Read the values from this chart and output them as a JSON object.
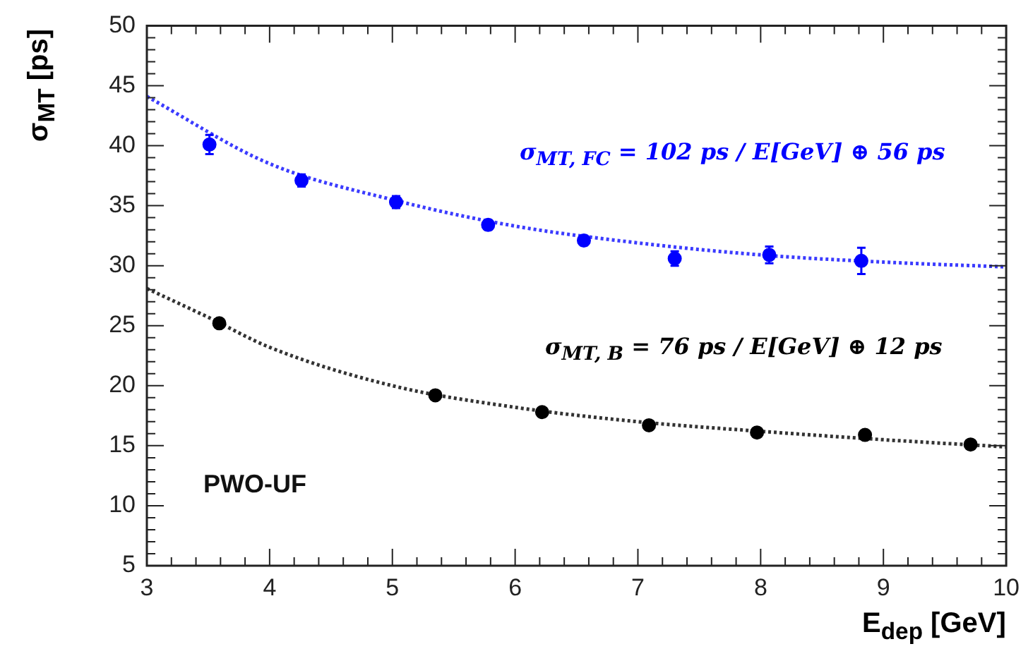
{
  "chart_data": {
    "type": "scatter",
    "xlabel": "E$_{dep}$ [GeV]",
    "ylabel": "σ$_{MT}$ [ps]",
    "xlim": [
      3,
      10
    ],
    "ylim": [
      5,
      50
    ],
    "xticks": [
      3,
      {
        "value": 3.2,
        "label": null
      },
      {
        "value": 3.4,
        "label": null
      },
      {
        "value": 3.6,
        "label": null
      },
      {
        "value": 3.8,
        "label": null
      },
      4,
      {
        "value": 4.2,
        "label": null
      },
      {
        "value": 4.4,
        "label": null
      },
      {
        "value": 4.6,
        "label": null
      },
      {
        "value": 4.8,
        "label": null
      },
      5,
      {
        "value": 5.2,
        "label": null
      },
      {
        "value": 5.4,
        "label": null
      },
      {
        "value": 5.6,
        "label": null
      },
      {
        "value": 5.8,
        "label": null
      },
      6,
      {
        "value": 6.2,
        "label": null
      },
      {
        "value": 6.4,
        "label": null
      },
      {
        "value": 6.6,
        "label": null
      },
      {
        "value": 6.8,
        "label": null
      },
      7,
      {
        "value": 7.2,
        "label": null
      },
      {
        "value": 7.4,
        "label": null
      },
      {
        "value": 7.6,
        "label": null
      },
      {
        "value": 7.8,
        "label": null
      },
      8,
      {
        "value": 8.2,
        "label": null
      },
      {
        "value": 8.4,
        "label": null
      },
      {
        "value": 8.6,
        "label": null
      },
      {
        "value": 8.8,
        "label": null
      },
      9,
      {
        "value": 9.2,
        "label": null
      },
      {
        "value": 9.4,
        "label": null
      },
      {
        "value": 9.6,
        "label": null
      },
      {
        "value": 9.8,
        "label": null
      },
      10
    ],
    "yticks": [
      5,
      {
        "value": 6,
        "label": null
      },
      {
        "value": 7,
        "label": null
      },
      {
        "value": 8,
        "label": null
      },
      {
        "value": 9,
        "label": null
      },
      10,
      {
        "value": 11,
        "label": null
      },
      {
        "value": 12,
        "label": null
      },
      {
        "value": 13,
        "label": null
      },
      {
        "value": 14,
        "label": null
      },
      15,
      {
        "value": 16,
        "label": null
      },
      {
        "value": 17,
        "label": null
      },
      {
        "value": 18,
        "label": null
      },
      {
        "value": 19,
        "label": null
      },
      20,
      {
        "value": 21,
        "label": null
      },
      {
        "value": 22,
        "label": null
      },
      {
        "value": 23,
        "label": null
      },
      {
        "value": 24,
        "label": null
      },
      25,
      {
        "value": 26,
        "label": null
      },
      {
        "value": 27,
        "label": null
      },
      {
        "value": 28,
        "label": null
      },
      {
        "value": 29,
        "label": null
      },
      30,
      {
        "value": 31,
        "label": null
      },
      {
        "value": 32,
        "label": null
      },
      {
        "value": 33,
        "label": null
      },
      {
        "value": 34,
        "label": null
      },
      35,
      {
        "value": 36,
        "label": null
      },
      {
        "value": 37,
        "label": null
      },
      {
        "value": 38,
        "label": null
      },
      {
        "value": 39,
        "label": null
      },
      40,
      {
        "value": 41,
        "label": null
      },
      {
        "value": 42,
        "label": null
      },
      {
        "value": 43,
        "label": null
      },
      {
        "value": 44,
        "label": null
      },
      45,
      {
        "value": 46,
        "label": null
      },
      {
        "value": 47,
        "label": null
      },
      {
        "value": 48,
        "label": null
      },
      {
        "value": 49,
        "label": null
      },
      50
    ],
    "grid": false,
    "legend": false,
    "marker": "circle",
    "line_style": "dotted",
    "series": [
      {
        "color": "#0000ff",
        "x": [
          3.51,
          4.26,
          5.03,
          5.78,
          6.56,
          7.3,
          8.07,
          8.82
        ],
        "values": [
          40.1,
          37.1,
          35.3,
          33.4,
          32.1,
          30.6,
          30.9,
          30.4
        ],
        "errors": [
          0.8,
          0.5,
          0.5,
          0.4,
          0.4,
          0.6,
          0.7,
          1.1
        ]
      },
      {
        "type": "line",
        "marker": "none",
        "color": "#3b3bff",
        "x": [
          3,
          4,
          5,
          6,
          7,
          8,
          9,
          10
        ],
        "values": [
          44.1,
          38.5,
          35.5,
          33.3,
          31.9,
          30.9,
          30.3,
          29.9
        ]
      },
      {
        "color": "#000000",
        "x": [
          3.59,
          5.35,
          6.22,
          7.09,
          7.97,
          8.85,
          9.71
        ],
        "values": [
          25.2,
          19.2,
          17.8,
          16.7,
          16.1,
          15.9,
          15.1
        ]
      },
      {
        "type": "line",
        "marker": "none",
        "color": "#333333",
        "x": [
          3,
          3.5,
          4,
          5,
          6,
          7,
          8,
          9,
          10
        ],
        "values": [
          28.1,
          25.7,
          23.2,
          20.0,
          18.2,
          17.0,
          16.2,
          15.5,
          14.9
        ]
      }
    ],
    "annotations": [
      "σ$_{MT, FC}$ = 102 ps / E[GeV] ⊕ 56 ps",
      "σ$_{MT, B}$ = 76 ps / E[GeV] ⊕ 12 ps",
      "PWO-UF"
    ]
  }
}
